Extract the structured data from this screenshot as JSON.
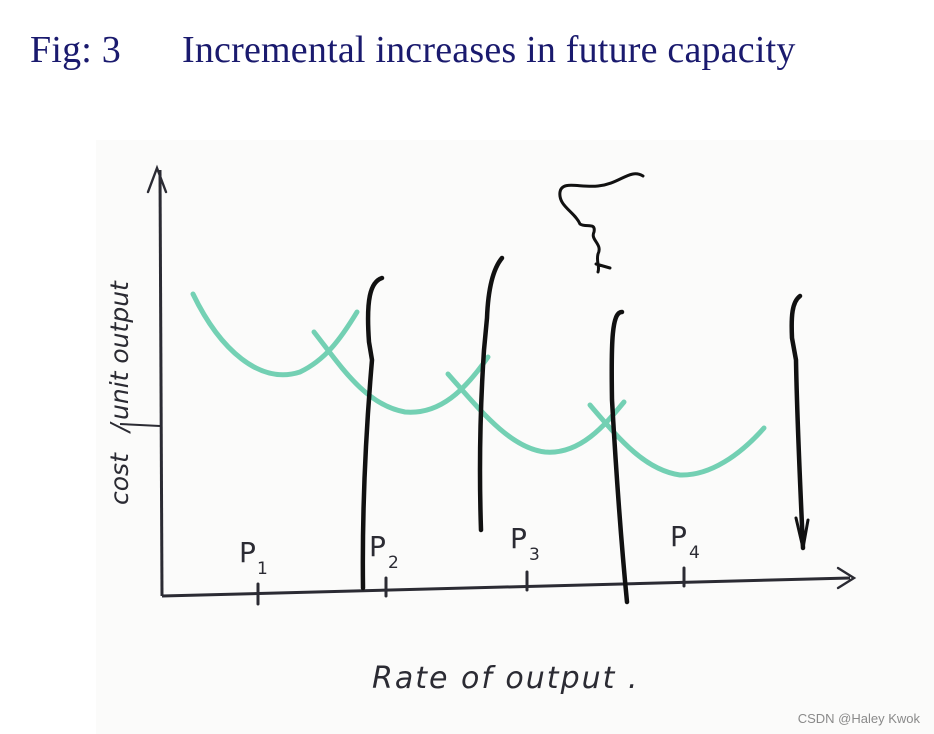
{
  "figure": {
    "number_label": "Fig: 3",
    "title": "Incremental increases in future capacity"
  },
  "axes": {
    "y_label_word1": "cost",
    "y_label_word2": "unit output",
    "x_label": "Rate of output .",
    "tick_labels": [
      "P",
      "P",
      "P",
      "P"
    ],
    "tick_subscripts": [
      "1",
      "2",
      "3",
      "4"
    ]
  },
  "colors": {
    "curve": "#5cc9a7",
    "ink": "#111111",
    "title": "#1a1a6e"
  },
  "watermark": "CSDN @Haley Kwok"
}
